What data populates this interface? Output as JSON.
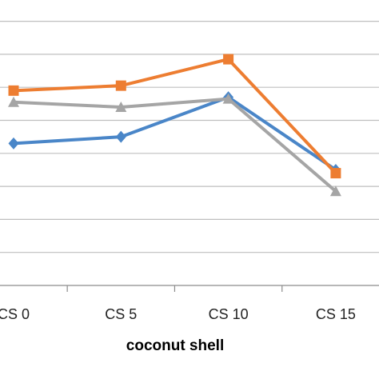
{
  "chart_data": {
    "type": "line",
    "categories": [
      "CS 0",
      "CS 5",
      "CS 10",
      "CS 15"
    ],
    "xlabel": "coconut shell",
    "ylabel": "",
    "ylim": [
      0,
      9
    ],
    "grid": true,
    "series": [
      {
        "marker": "diamond",
        "color": "#4a86c8",
        "values": [
          4.3,
          4.5,
          5.7,
          3.5
        ]
      },
      {
        "marker": "square",
        "color": "#ed7d31",
        "values": [
          5.9,
          6.05,
          6.85,
          3.4
        ]
      },
      {
        "marker": "triangle",
        "color": "#a5a5a5",
        "values": [
          5.55,
          5.4,
          5.65,
          2.85
        ]
      }
    ]
  }
}
